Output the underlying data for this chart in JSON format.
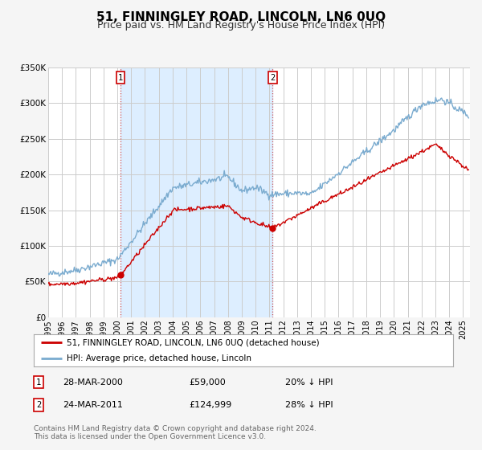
{
  "title": "51, FINNINGLEY ROAD, LINCOLN, LN6 0UQ",
  "subtitle": "Price paid vs. HM Land Registry's House Price Index (HPI)",
  "ylim": [
    0,
    350000
  ],
  "yticks": [
    0,
    50000,
    100000,
    150000,
    200000,
    250000,
    300000,
    350000
  ],
  "ytick_labels": [
    "£0",
    "£50K",
    "£100K",
    "£150K",
    "£200K",
    "£250K",
    "£300K",
    "£350K"
  ],
  "xlim_start": 1995.0,
  "xlim_end": 2025.5,
  "xtick_years": [
    1995,
    1996,
    1997,
    1998,
    1999,
    2000,
    2001,
    2002,
    2003,
    2004,
    2005,
    2006,
    2007,
    2008,
    2009,
    2010,
    2011,
    2012,
    2013,
    2014,
    2015,
    2016,
    2017,
    2018,
    2019,
    2020,
    2021,
    2022,
    2023,
    2024,
    2025
  ],
  "sale1_x": 2000.23,
  "sale1_y": 59000,
  "sale2_x": 2011.23,
  "sale2_y": 124999,
  "vline1_x": 2000.23,
  "vline2_x": 2011.23,
  "shade_color": "#ddeeff",
  "red_line_color": "#cc0000",
  "blue_line_color": "#7aabcf",
  "dot_color": "#cc0000",
  "legend1_label": "51, FINNINGLEY ROAD, LINCOLN, LN6 0UQ (detached house)",
  "legend2_label": "HPI: Average price, detached house, Lincoln",
  "annotation1_date": "28-MAR-2000",
  "annotation1_price": "£59,000",
  "annotation1_hpi": "20% ↓ HPI",
  "annotation2_date": "24-MAR-2011",
  "annotation2_price": "£124,999",
  "annotation2_hpi": "28% ↓ HPI",
  "footnote1": "Contains HM Land Registry data © Crown copyright and database right 2024.",
  "footnote2": "This data is licensed under the Open Government Licence v3.0.",
  "background_color": "#f5f5f5",
  "plot_bg_color": "#ffffff",
  "grid_color": "#cccccc",
  "title_fontsize": 11,
  "subtitle_fontsize": 9
}
